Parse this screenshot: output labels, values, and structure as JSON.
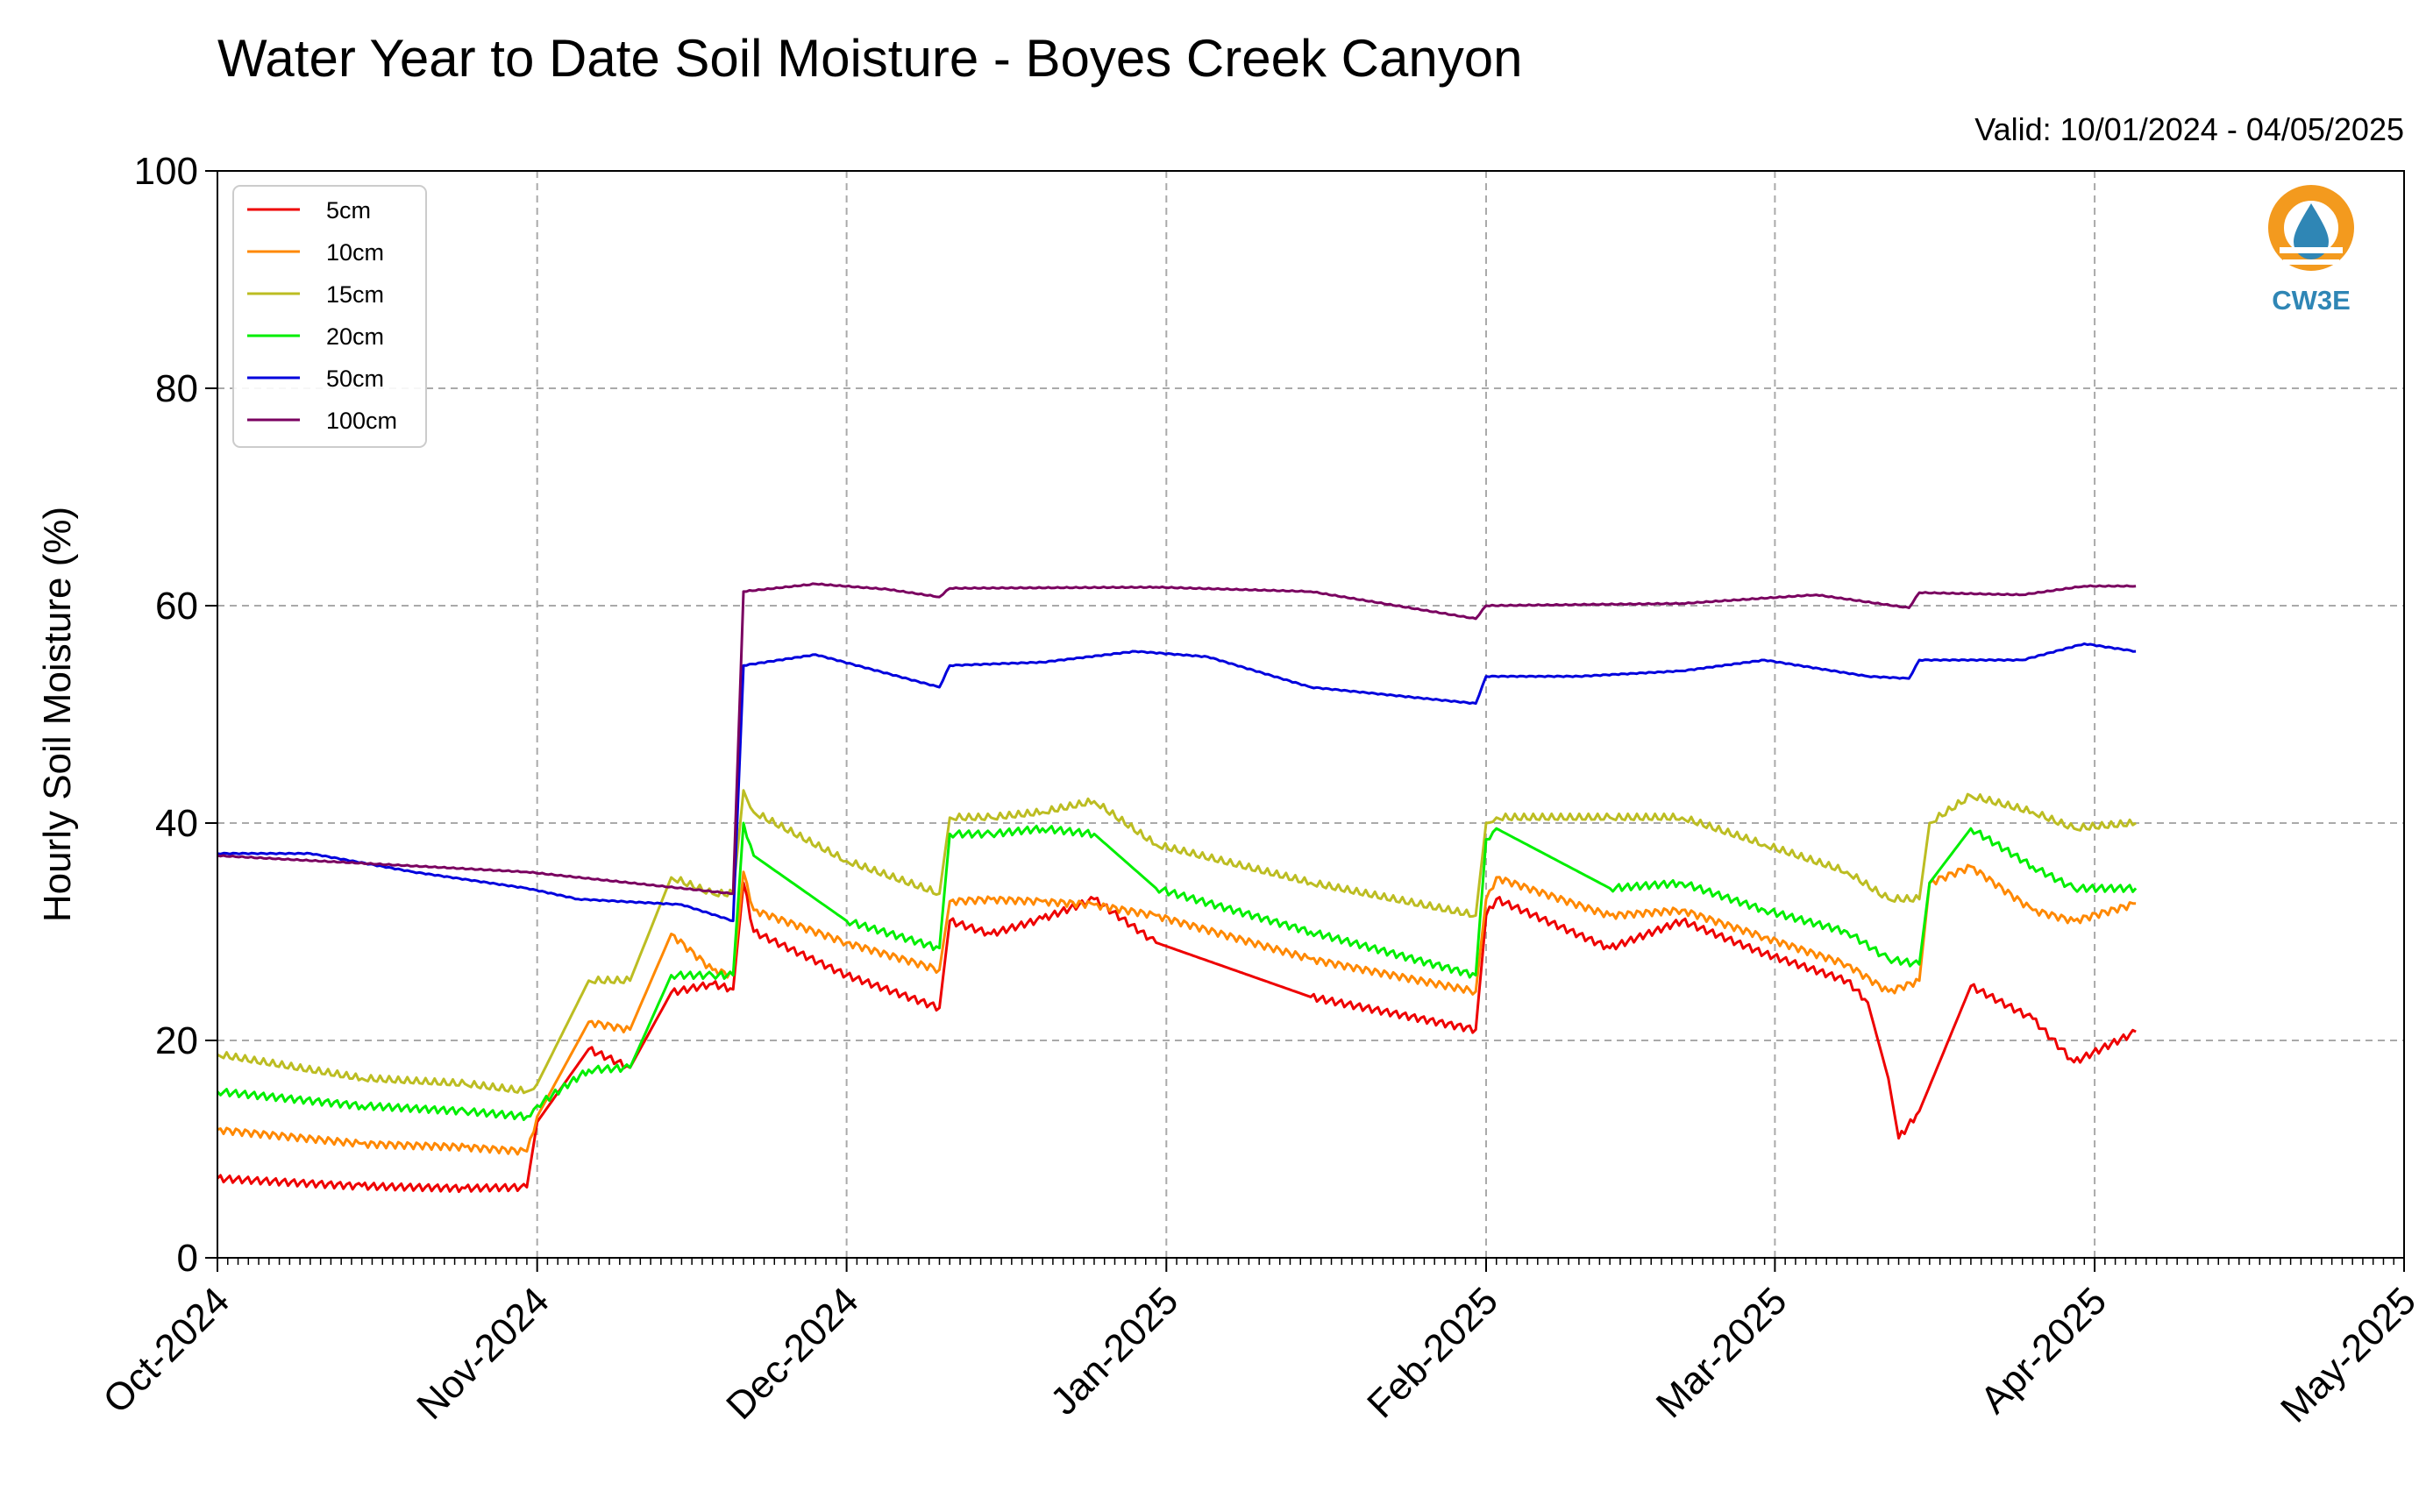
{
  "chart_data": {
    "type": "line",
    "title": "Water Year to Date Soil Moisture - Boyes Creek Canyon",
    "subtitle": "Valid: 10/01/2024 - 04/05/2025",
    "ylabel": "Hourly Soil Moisture (%)",
    "xlabel": "",
    "ylim": [
      0,
      100
    ],
    "yticks": [
      0,
      20,
      40,
      60,
      80,
      100
    ],
    "xlim": [
      "2024-10-01",
      "2025-05-01"
    ],
    "xticks": [
      {
        "date": "2024-10-01",
        "label": "Oct-2024"
      },
      {
        "date": "2024-11-01",
        "label": "Nov-2024"
      },
      {
        "date": "2024-12-01",
        "label": "Dec-2024"
      },
      {
        "date": "2025-01-01",
        "label": "Jan-2025"
      },
      {
        "date": "2025-02-01",
        "label": "Feb-2025"
      },
      {
        "date": "2025-03-01",
        "label": "Mar-2025"
      },
      {
        "date": "2025-04-01",
        "label": "Apr-2025"
      },
      {
        "date": "2025-05-01",
        "label": "May-2025"
      }
    ],
    "grid": true,
    "legend_position": "top-left",
    "series": [
      {
        "name": "5cm",
        "color": "#ee0000",
        "x": [
          "2024-10-01",
          "2024-10-15",
          "2024-10-25",
          "2024-10-31",
          "2024-11-01",
          "2024-11-06",
          "2024-11-10",
          "2024-11-14",
          "2024-11-18",
          "2024-11-20",
          "2024-11-21",
          "2024-11-22",
          "2024-12-01",
          "2024-12-10",
          "2024-12-11",
          "2024-12-15",
          "2024-12-20",
          "2024-12-25",
          "2024-12-31",
          "2025-01-15",
          "2025-01-31",
          "2025-02-01",
          "2025-02-02",
          "2025-02-13",
          "2025-02-20",
          "2025-02-28",
          "2025-03-08",
          "2025-03-10",
          "2025-03-12",
          "2025-03-13",
          "2025-03-15",
          "2025-03-20",
          "2025-03-26",
          "2025-03-30",
          "2025-04-05"
        ],
        "y": [
          7.3,
          6.6,
          6.4,
          6.5,
          12.5,
          19.2,
          17.5,
          24.4,
          25.2,
          24.7,
          34.5,
          30.0,
          26.0,
          23.0,
          31.0,
          29.8,
          31.2,
          33.0,
          29.0,
          24.0,
          21.0,
          31.5,
          33.0,
          28.5,
          31.0,
          28.0,
          25.5,
          23.5,
          16.5,
          11.0,
          13.5,
          25.0,
          22.0,
          18.0,
          20.8
        ]
      },
      {
        "name": "10cm",
        "color": "#ff8800",
        "x": [
          "2024-10-01",
          "2024-10-15",
          "2024-10-25",
          "2024-10-31",
          "2024-11-01",
          "2024-11-06",
          "2024-11-10",
          "2024-11-14",
          "2024-11-18",
          "2024-11-20",
          "2024-11-21",
          "2024-11-22",
          "2024-12-01",
          "2024-12-10",
          "2024-12-11",
          "2024-12-15",
          "2024-12-20",
          "2024-12-25",
          "2024-12-31",
          "2025-01-15",
          "2025-01-31",
          "2025-02-01",
          "2025-02-02",
          "2025-02-13",
          "2025-02-20",
          "2025-02-28",
          "2025-03-08",
          "2025-03-12",
          "2025-03-15",
          "2025-03-16",
          "2025-03-20",
          "2025-03-26",
          "2025-03-30",
          "2025-04-05"
        ],
        "y": [
          11.8,
          10.5,
          10.2,
          9.8,
          13.0,
          21.7,
          21.0,
          29.8,
          26.5,
          26.0,
          35.5,
          32.0,
          29.0,
          26.5,
          32.8,
          33.0,
          32.8,
          32.5,
          31.5,
          27.5,
          24.5,
          33.0,
          35.0,
          31.5,
          32.0,
          29.5,
          27.0,
          24.5,
          25.5,
          34.5,
          36.0,
          32.0,
          31.0,
          32.6
        ]
      },
      {
        "name": "15cm",
        "color": "#bcbd22",
        "x": [
          "2024-10-01",
          "2024-10-15",
          "2024-10-25",
          "2024-10-31",
          "2024-11-01",
          "2024-11-06",
          "2024-11-10",
          "2024-11-14",
          "2024-11-18",
          "2024-11-20",
          "2024-11-21",
          "2024-11-22",
          "2024-12-01",
          "2024-12-10",
          "2024-12-11",
          "2024-12-15",
          "2024-12-20",
          "2024-12-25",
          "2024-12-31",
          "2025-01-15",
          "2025-01-31",
          "2025-02-01",
          "2025-02-02",
          "2025-02-13",
          "2025-02-20",
          "2025-02-28",
          "2025-03-08",
          "2025-03-12",
          "2025-03-15",
          "2025-03-16",
          "2025-03-20",
          "2025-03-26",
          "2025-03-30",
          "2025-04-05"
        ],
        "y": [
          18.7,
          16.5,
          16.0,
          15.3,
          16.0,
          25.5,
          25.5,
          35.0,
          33.5,
          33.5,
          43.0,
          41.0,
          36.5,
          33.5,
          40.5,
          40.5,
          41.0,
          42.0,
          38.0,
          34.5,
          31.5,
          40.0,
          40.5,
          40.5,
          40.5,
          38.0,
          35.5,
          33.0,
          33.0,
          40.0,
          42.5,
          41.0,
          39.5,
          40.0
        ]
      },
      {
        "name": "20cm",
        "color": "#00ee00",
        "x": [
          "2024-10-01",
          "2024-10-15",
          "2024-10-25",
          "2024-10-31",
          "2024-11-01",
          "2024-11-06",
          "2024-11-10",
          "2024-11-14",
          "2024-11-18",
          "2024-11-20",
          "2024-11-21",
          "2024-11-22",
          "2024-12-01",
          "2024-12-10",
          "2024-12-11",
          "2024-12-15",
          "2024-12-20",
          "2024-12-25",
          "2024-12-31",
          "2025-01-15",
          "2025-01-31",
          "2025-02-01",
          "2025-02-02",
          "2025-02-13",
          "2025-02-20",
          "2025-02-28",
          "2025-03-08",
          "2025-03-12",
          "2025-03-15",
          "2025-03-16",
          "2025-03-20",
          "2025-03-26",
          "2025-03-30",
          "2025-04-05"
        ],
        "y": [
          15.3,
          14.0,
          13.5,
          13.0,
          14.0,
          17.3,
          17.5,
          26.0,
          26.0,
          26.0,
          40.0,
          37.0,
          31.0,
          28.5,
          39.0,
          39.0,
          39.5,
          39.0,
          34.0,
          30.0,
          26.0,
          38.5,
          39.5,
          34.0,
          34.5,
          32.0,
          30.0,
          27.5,
          27.0,
          34.5,
          39.5,
          36.0,
          34.0,
          34.0
        ]
      },
      {
        "name": "50cm",
        "color": "#0000dd",
        "x": [
          "2024-10-01",
          "2024-10-10",
          "2024-10-20",
          "2024-10-31",
          "2024-11-05",
          "2024-11-15",
          "2024-11-20",
          "2024-11-21",
          "2024-11-28",
          "2024-12-10",
          "2024-12-11",
          "2024-12-20",
          "2024-12-29",
          "2025-01-05",
          "2025-01-15",
          "2025-01-31",
          "2025-02-01",
          "2025-02-10",
          "2025-02-20",
          "2025-02-28",
          "2025-03-10",
          "2025-03-14",
          "2025-03-15",
          "2025-03-25",
          "2025-03-31",
          "2025-04-05"
        ],
        "y": [
          37.2,
          37.2,
          35.5,
          34.0,
          33.0,
          32.5,
          31.0,
          54.5,
          55.5,
          52.5,
          54.5,
          54.8,
          55.8,
          55.3,
          52.5,
          51.0,
          53.5,
          53.5,
          54.0,
          55.0,
          53.5,
          53.3,
          55.0,
          55.0,
          56.5,
          55.8
        ]
      },
      {
        "name": "100cm",
        "color": "#7a0060",
        "x": [
          "2024-10-01",
          "2024-10-31",
          "2024-11-20",
          "2024-11-21",
          "2024-11-28",
          "2024-12-05",
          "2024-12-10",
          "2024-12-11",
          "2024-12-31",
          "2025-01-15",
          "2025-01-31",
          "2025-02-01",
          "2025-02-20",
          "2025-03-05",
          "2025-03-14",
          "2025-03-15",
          "2025-03-25",
          "2025-03-31",
          "2025-04-05"
        ],
        "y": [
          37.0,
          35.5,
          33.5,
          61.3,
          62.0,
          61.5,
          60.8,
          61.6,
          61.7,
          61.3,
          58.8,
          60.0,
          60.2,
          61.0,
          59.8,
          61.2,
          61.0,
          61.8,
          61.8
        ]
      }
    ]
  },
  "logo": {
    "text": "CW3E",
    "ring_color": "#f39a1e",
    "drop_color": "#2f86b5"
  }
}
